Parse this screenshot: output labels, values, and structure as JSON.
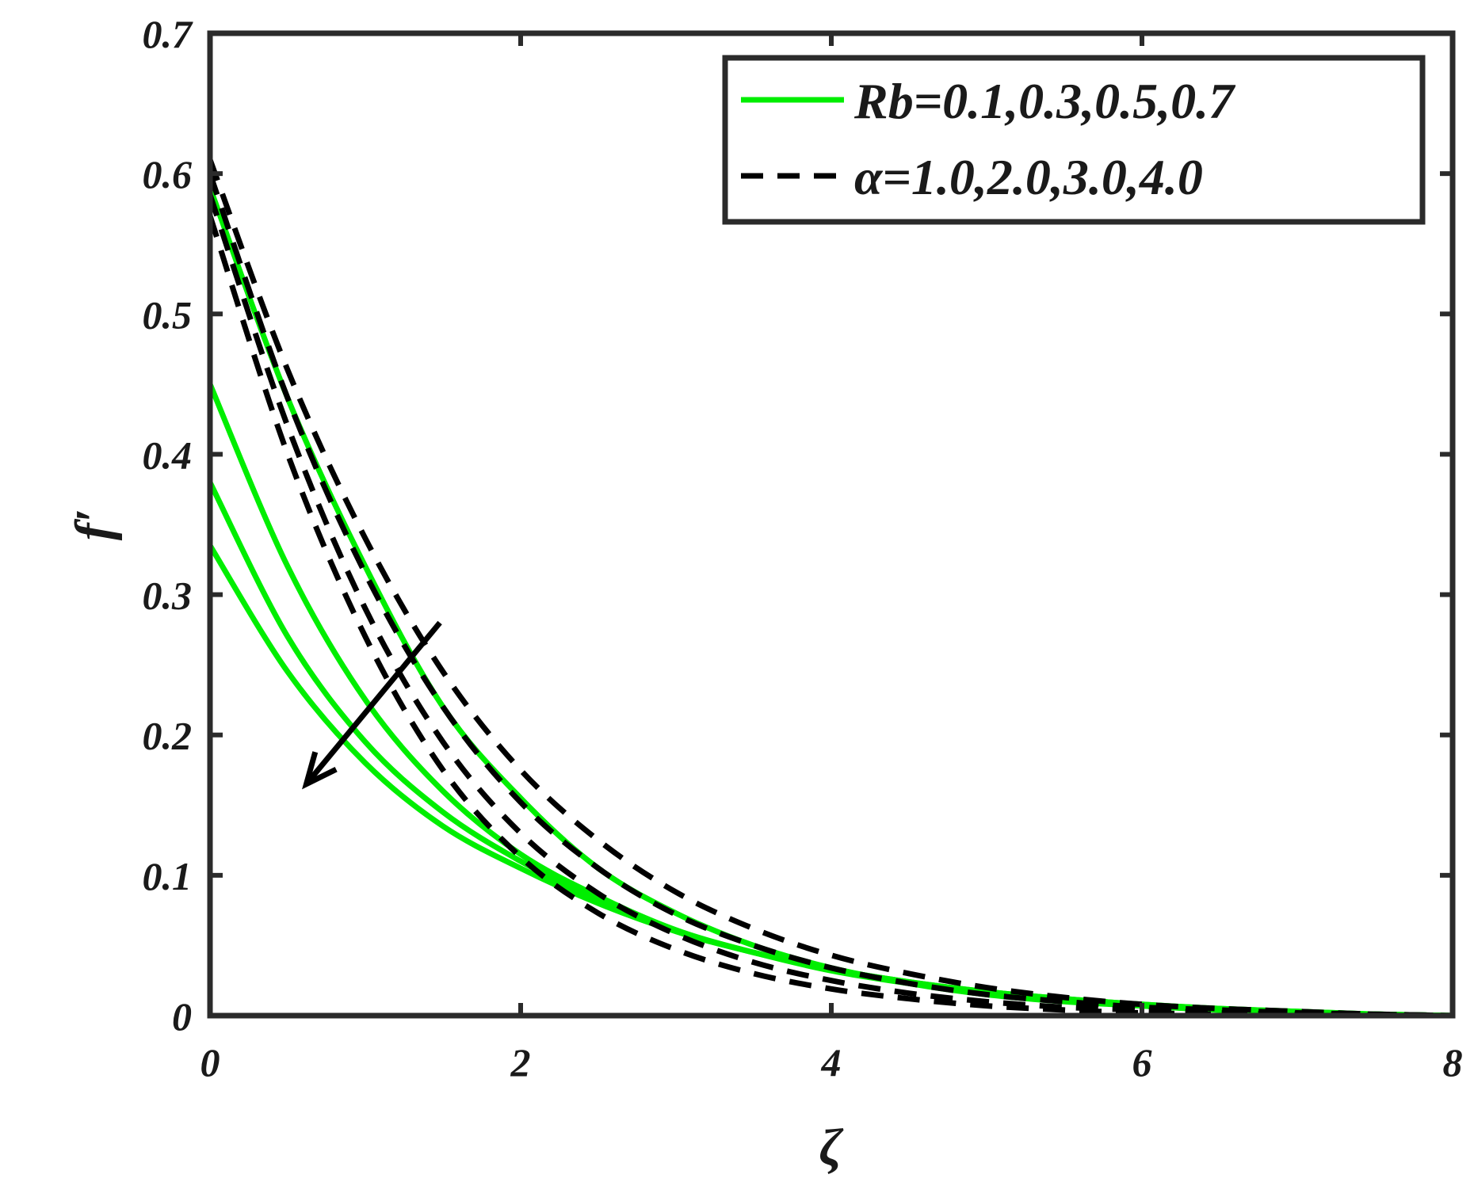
{
  "chart_data": {
    "type": "line",
    "xlabel": "ζ",
    "ylabel": "f′",
    "xlim": [
      0,
      8
    ],
    "ylim": [
      0,
      0.7
    ],
    "xticks": [
      "0",
      "2",
      "4",
      "6",
      "8"
    ],
    "yticks": [
      "0",
      "0.1",
      "0.2",
      "0.3",
      "0.4",
      "0.5",
      "0.6",
      "0.7"
    ],
    "grid": false,
    "legend_position": "top-right",
    "legend": [
      {
        "label": "Rb=0.1,0.3,0.5,0.7",
        "style": "solid",
        "color": "#00ee00"
      },
      {
        "label": "α=1.0,2.0,3.0,4.0",
        "style": "dashed",
        "color": "#000000"
      }
    ],
    "annotation": "arrow pointing down-left indicating decrease with increasing parameter",
    "x": [
      0,
      0.5,
      1,
      1.5,
      2,
      2.5,
      3,
      3.5,
      4,
      4.5,
      5,
      5.5,
      6,
      6.5,
      7,
      7.5,
      8
    ],
    "series": [
      {
        "group": "Rb",
        "style": "solid",
        "color": "#00ee00",
        "values": [
          0.59,
          0.44,
          0.32,
          0.22,
          0.155,
          0.105,
          0.073,
          0.05,
          0.034,
          0.023,
          0.015,
          0.01,
          0.007,
          0.004,
          0.002,
          0.001,
          0.0
        ]
      },
      {
        "group": "Rb",
        "style": "solid",
        "color": "#00ee00",
        "values": [
          0.45,
          0.32,
          0.225,
          0.16,
          0.115,
          0.085,
          0.061,
          0.045,
          0.032,
          0.023,
          0.016,
          0.011,
          0.007,
          0.004,
          0.002,
          0.001,
          0.0
        ]
      },
      {
        "group": "Rb",
        "style": "solid",
        "color": "#00ee00",
        "values": [
          0.38,
          0.27,
          0.195,
          0.145,
          0.11,
          0.082,
          0.06,
          0.045,
          0.033,
          0.024,
          0.017,
          0.012,
          0.008,
          0.005,
          0.003,
          0.001,
          0.0
        ]
      },
      {
        "group": "Rb",
        "style": "solid",
        "color": "#00ee00",
        "values": [
          0.335,
          0.245,
          0.18,
          0.135,
          0.105,
          0.08,
          0.06,
          0.045,
          0.033,
          0.024,
          0.017,
          0.012,
          0.008,
          0.005,
          0.003,
          0.001,
          0.0
        ]
      },
      {
        "group": "α",
        "style": "dashed",
        "color": "#000000",
        "values": [
          0.61,
          0.46,
          0.34,
          0.245,
          0.175,
          0.125,
          0.088,
          0.062,
          0.043,
          0.03,
          0.02,
          0.013,
          0.008,
          0.005,
          0.003,
          0.001,
          0.0
        ]
      },
      {
        "group": "α",
        "style": "dashed",
        "color": "#000000",
        "values": [
          0.6,
          0.44,
          0.315,
          0.22,
          0.152,
          0.105,
          0.072,
          0.05,
          0.034,
          0.023,
          0.015,
          0.01,
          0.006,
          0.004,
          0.002,
          0.001,
          0.0
        ]
      },
      {
        "group": "α",
        "style": "dashed",
        "color": "#000000",
        "values": [
          0.585,
          0.42,
          0.29,
          0.195,
          0.13,
          0.087,
          0.058,
          0.038,
          0.025,
          0.016,
          0.01,
          0.006,
          0.004,
          0.002,
          0.001,
          0.0005,
          0.0
        ]
      },
      {
        "group": "α",
        "style": "dashed",
        "color": "#000000",
        "values": [
          0.57,
          0.4,
          0.27,
          0.175,
          0.113,
          0.073,
          0.047,
          0.03,
          0.019,
          0.012,
          0.007,
          0.004,
          0.002,
          0.001,
          0.0005,
          0.0002,
          0.0
        ]
      }
    ]
  }
}
